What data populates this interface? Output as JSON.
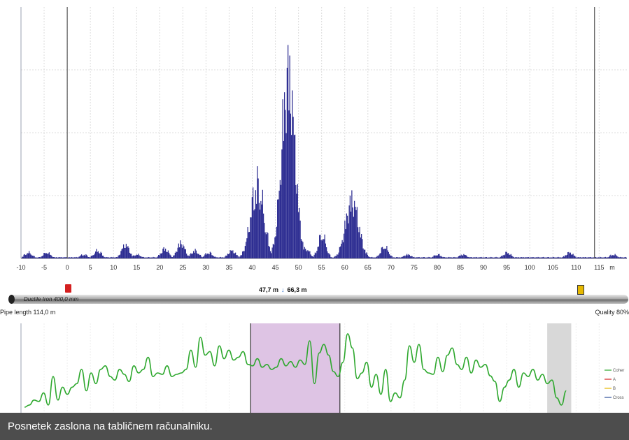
{
  "chart_data": [
    {
      "type": "bar",
      "xlabel": "m",
      "xlim": [
        -10,
        121
      ],
      "xticks": [
        -10,
        -5,
        0,
        5,
        10,
        15,
        20,
        25,
        30,
        35,
        40,
        45,
        50,
        55,
        60,
        65,
        70,
        75,
        80,
        85,
        90,
        95,
        100,
        105,
        110,
        115
      ],
      "grid": true,
      "peaks": [
        {
          "x": -8.5,
          "height": 0.03
        },
        {
          "x": -4.5,
          "height": 0.03
        },
        {
          "x": 3.5,
          "height": 0.02
        },
        {
          "x": 6.5,
          "height": 0.04
        },
        {
          "x": 12.5,
          "height": 0.07
        },
        {
          "x": 15,
          "height": 0.02
        },
        {
          "x": 21,
          "height": 0.05
        },
        {
          "x": 24.5,
          "height": 0.08
        },
        {
          "x": 27.5,
          "height": 0.04
        },
        {
          "x": 30.5,
          "height": 0.03
        },
        {
          "x": 35.5,
          "height": 0.04
        },
        {
          "x": 41,
          "height": 0.38
        },
        {
          "x": 47.7,
          "height": 0.95
        },
        {
          "x": 51.5,
          "height": 0.05
        },
        {
          "x": 55,
          "height": 0.12
        },
        {
          "x": 61.5,
          "height": 0.3
        },
        {
          "x": 68.5,
          "height": 0.06
        },
        {
          "x": 73.5,
          "height": 0.02
        },
        {
          "x": 80,
          "height": 0.02
        },
        {
          "x": 85.5,
          "height": 0.02
        },
        {
          "x": 95,
          "height": 0.03
        },
        {
          "x": 108.5,
          "height": 0.03
        },
        {
          "x": 118,
          "height": 0.02
        }
      ],
      "markers": {
        "sensor_a_x": 0,
        "sensor_b_x": 114
      },
      "colors": {
        "bars": "#2e2e92",
        "grid": "#dcdcdc",
        "markers": "#555555"
      }
    },
    {
      "type": "line",
      "legend": [
        "Coher",
        "A",
        "B",
        "Cross"
      ],
      "legend_colors": [
        "#2ea82e",
        "#d42020",
        "#e6b800",
        "#2f4f9a"
      ],
      "legend_position": "right",
      "highlight_band": {
        "x_start": 47.7,
        "x_end": 66.3,
        "color": "#dec4e4"
      },
      "end_band": {
        "x_start": 109.5,
        "x_end": 114.5,
        "color": "#d8d8d8"
      },
      "points": [
        [
          0,
          0.02
        ],
        [
          1,
          0.05
        ],
        [
          2,
          0.12
        ],
        [
          3,
          0.1
        ],
        [
          4,
          0.22
        ],
        [
          5,
          0.05
        ],
        [
          6,
          0.45
        ],
        [
          7,
          0.12
        ],
        [
          8,
          0.3
        ],
        [
          9,
          0.2
        ],
        [
          10,
          0.3
        ],
        [
          11,
          0.35
        ],
        [
          12,
          0.55
        ],
        [
          13,
          0.25
        ],
        [
          14,
          0.5
        ],
        [
          15,
          0.35
        ],
        [
          16,
          0.55
        ],
        [
          17,
          0.6
        ],
        [
          18,
          0.45
        ],
        [
          19,
          0.4
        ],
        [
          20,
          0.55
        ],
        [
          21,
          0.48
        ],
        [
          22,
          0.38
        ],
        [
          23,
          0.6
        ],
        [
          24,
          0.5
        ],
        [
          25,
          0.55
        ],
        [
          26,
          0.72
        ],
        [
          27,
          0.45
        ],
        [
          28,
          0.5
        ],
        [
          29,
          0.48
        ],
        [
          30,
          0.6
        ],
        [
          31,
          0.45
        ],
        [
          32,
          0.48
        ],
        [
          33,
          0.5
        ],
        [
          34,
          0.55
        ],
        [
          35,
          0.82
        ],
        [
          36,
          0.58
        ],
        [
          37,
          1.0
        ],
        [
          38,
          0.75
        ],
        [
          39,
          0.8
        ],
        [
          40,
          0.6
        ],
        [
          41,
          0.88
        ],
        [
          42,
          0.7
        ],
        [
          43,
          0.82
        ],
        [
          44,
          0.68
        ],
        [
          45,
          0.72
        ],
        [
          46,
          0.8
        ],
        [
          47,
          0.62
        ],
        [
          48,
          0.6
        ],
        [
          49,
          0.7
        ],
        [
          50,
          0.58
        ],
        [
          51,
          0.62
        ],
        [
          52,
          0.55
        ],
        [
          53,
          0.58
        ],
        [
          54,
          0.7
        ],
        [
          55,
          0.6
        ],
        [
          56,
          0.66
        ],
        [
          57,
          0.58
        ],
        [
          58,
          0.68
        ],
        [
          59,
          0.62
        ],
        [
          60,
          0.95
        ],
        [
          61,
          0.35
        ],
        [
          62,
          0.78
        ],
        [
          63,
          0.9
        ],
        [
          64,
          0.75
        ],
        [
          65,
          0.52
        ],
        [
          66,
          0.45
        ],
        [
          67,
          0.65
        ],
        [
          68,
          1.05
        ],
        [
          69,
          0.85
        ],
        [
          70,
          0.42
        ],
        [
          71,
          0.5
        ],
        [
          72,
          0.65
        ],
        [
          73,
          0.3
        ],
        [
          74,
          0.48
        ],
        [
          75,
          0.2
        ],
        [
          76,
          0.55
        ],
        [
          77,
          0.1
        ],
        [
          78,
          0.22
        ],
        [
          79,
          0.15
        ],
        [
          80,
          0.4
        ],
        [
          81,
          0.88
        ],
        [
          82,
          0.65
        ],
        [
          83,
          0.9
        ],
        [
          84,
          0.55
        ],
        [
          85,
          0.5
        ],
        [
          86,
          0.48
        ],
        [
          87,
          0.72
        ],
        [
          88,
          0.52
        ],
        [
          89,
          0.75
        ],
        [
          90,
          0.85
        ],
        [
          91,
          0.62
        ],
        [
          92,
          0.55
        ],
        [
          93,
          0.72
        ],
        [
          94,
          0.5
        ],
        [
          95,
          0.68
        ],
        [
          96,
          0.58
        ],
        [
          97,
          0.62
        ],
        [
          98,
          0.46
        ],
        [
          99,
          0.38
        ],
        [
          100,
          0.1
        ],
        [
          101,
          0.3
        ],
        [
          102,
          0.4
        ],
        [
          103,
          0.55
        ],
        [
          104,
          0.3
        ],
        [
          105,
          0.5
        ],
        [
          106,
          0.45
        ],
        [
          107,
          0.55
        ],
        [
          108,
          0.4
        ],
        [
          109,
          0.48
        ],
        [
          110,
          0.35
        ],
        [
          111,
          0.4
        ],
        [
          112,
          0.15
        ],
        [
          113,
          0.05
        ],
        [
          114,
          0.25
        ]
      ]
    }
  ],
  "pipe": {
    "material": "Ductile Iron 400,0 mm",
    "distance_a": "47,7 m",
    "distance_b": "66,3 m",
    "length_label": "Pipe length 114,0 m",
    "quality_label": "Quality 80%"
  },
  "caption": "Posnetek zaslona na tabličnem računalniku."
}
